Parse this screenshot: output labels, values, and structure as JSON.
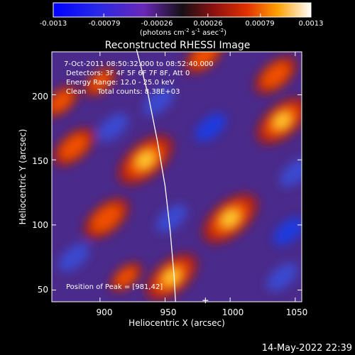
{
  "chart_data": {
    "type": "heatmap",
    "title": "Reconstructed RHESSI Image",
    "xlabel": "Heliocentric X (arcsec)",
    "ylabel": "Heliocentric Y (arcsec)",
    "xlim": [
      863,
      1055
    ],
    "ylim": [
      41,
      233
    ],
    "xticks": [
      900,
      950,
      1000,
      1050
    ],
    "yticks": [
      50,
      100,
      150,
      200
    ],
    "colorbar": {
      "min": -0.0013,
      "max": 0.0013,
      "ticks": [
        "-0.0013",
        "-0.00079",
        "-0.00026",
        "0.00026",
        "0.00079",
        "0.0013"
      ],
      "tick_values": [
        -0.0013,
        -0.00079,
        -0.00026,
        0.00026,
        0.00079,
        0.0013
      ],
      "unit_label": "(photons cm",
      "unit_sup1": "-2",
      "unit_mid": " s",
      "unit_sup2": "-1",
      "unit_mid2": " asec",
      "unit_sup3": "-2",
      "unit_end": ")"
    },
    "annotations": [
      "7-Oct-2011 08:50:32.000 to 08:52:40.000",
      "Detectors: 3F 4F 5F 6F 7F 8F, Att 0",
      "Energy Range: 12.0 - 25.0 keV",
      "Clean     Total counts: 8.38E+03"
    ],
    "peak_label": "Position of Peak = [981,42]",
    "peak_position": [
      981,
      42
    ],
    "sources": [
      {
        "x": 935,
        "y": 150,
        "intensity": 0.0013
      },
      {
        "x": 1000,
        "y": 105,
        "intensity": 0.0013
      },
      {
        "x": 1040,
        "y": 180,
        "intensity": 0.0012
      },
      {
        "x": 955,
        "y": 60,
        "intensity": 0.0012
      },
      {
        "x": 905,
        "y": 105,
        "intensity": 0.001
      },
      {
        "x": 880,
        "y": 160,
        "intensity": 0.0009
      },
      {
        "x": 980,
        "y": 230,
        "intensity": 0.0008
      },
      {
        "x": 1035,
        "y": 215,
        "intensity": 0.0009
      },
      {
        "x": 900,
        "y": 210,
        "intensity": 0.0006
      },
      {
        "x": 870,
        "y": 195,
        "intensity": 0.0007
      },
      {
        "x": 920,
        "y": 60,
        "intensity": 0.0006
      }
    ],
    "negative_regions": [
      {
        "x": 985,
        "y": 175,
        "intensity": -0.0009
      },
      {
        "x": 1045,
        "y": 95,
        "intensity": -0.0009
      },
      {
        "x": 1040,
        "y": 60,
        "intensity": -0.0006
      },
      {
        "x": 955,
        "y": 105,
        "intensity": -0.0007
      },
      {
        "x": 910,
        "y": 175,
        "intensity": -0.0007
      },
      {
        "x": 880,
        "y": 75,
        "intensity": -0.0008
      },
      {
        "x": 945,
        "y": 195,
        "intensity": -0.0006
      },
      {
        "x": 1050,
        "y": 140,
        "intensity": -0.0006
      }
    ]
  },
  "footer": {
    "timestamp": "14-May-2022 22:39"
  },
  "colors": {
    "background": "#000000",
    "text": "#ffffff",
    "limb_line": "#ffffff"
  }
}
